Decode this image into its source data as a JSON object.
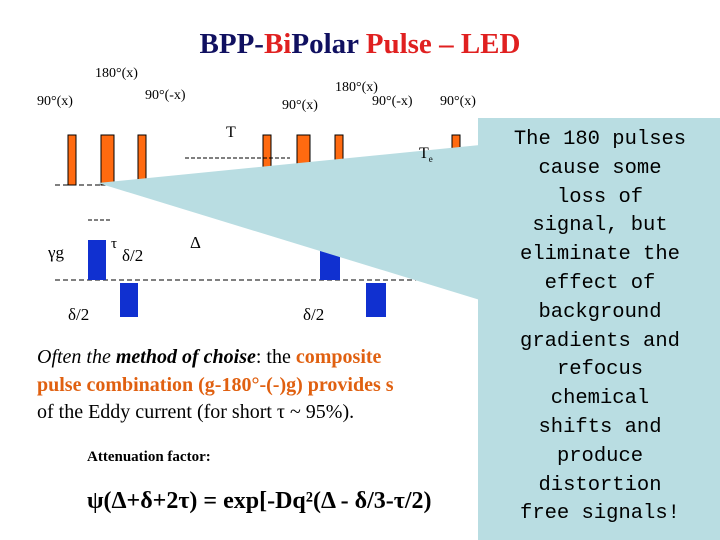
{
  "title": {
    "parts": [
      "BPP-",
      "Bi",
      "Polar",
      "Pulse",
      "–",
      "LED"
    ]
  },
  "pulse_labels": [
    "180°(x)",
    "90°(-x)",
    "90°(x)",
    "180°(x)",
    "90°(x)",
    "90°(-x)",
    "90°(x)"
  ],
  "delay_labels": {
    "T": "T",
    "Te": "T",
    "Te_sub": "e"
  },
  "gradient_labels": [
    "γg",
    "τ",
    "δ/2",
    "Δ",
    "δ/2",
    "δ/2"
  ],
  "text": {
    "line1": [
      "Often the ",
      "method of choise",
      ": the ",
      "composite"
    ],
    "line2": "pulse combination (g-180°-(-)g) provides s",
    "line3": "of the Eddy current (for short τ ~ 95%).",
    "attenuation": "Attenuation factor:",
    "formula": "ψ(Δ+δ+2τ) = exp[-Dq²(Δ - δ/3-τ/2)"
  },
  "callout": [
    "The 180 pulses",
    "cause some",
    "loss of",
    "signal, but",
    "eliminate the",
    "effect of",
    "background",
    "gradients and",
    "refocus",
    "chemical",
    "shifts and",
    "produce",
    "distortion",
    "free signals!"
  ]
}
